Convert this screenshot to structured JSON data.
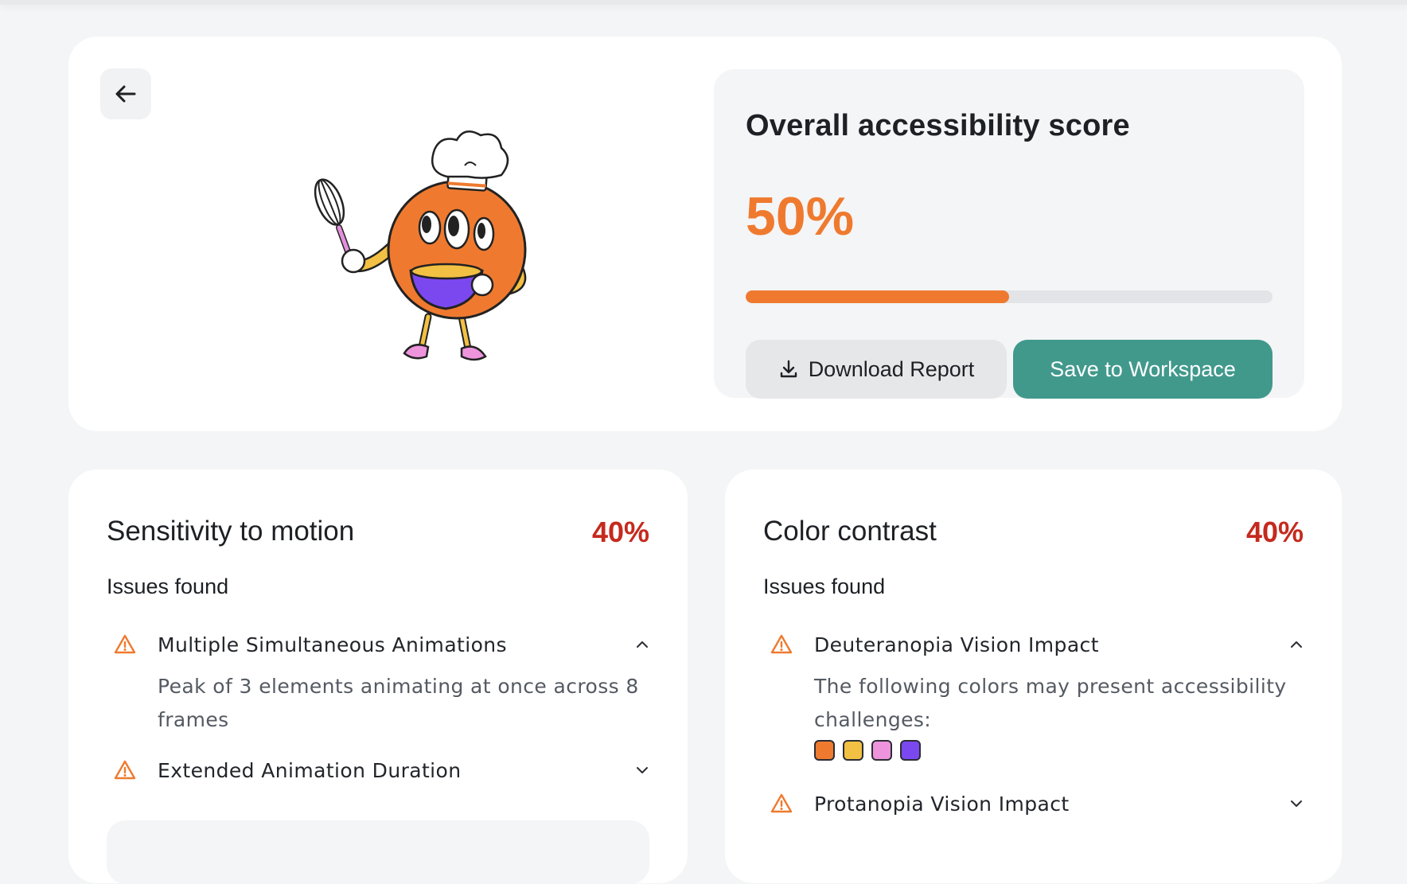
{
  "score_panel": {
    "title": "Overall accessibility score",
    "value": "50%",
    "progress_fraction": 0.5,
    "download_label": "Download Report",
    "save_label": "Save to Workspace"
  },
  "cards": [
    {
      "title": "Sensitivity to motion",
      "score": "40%",
      "issues_heading": "Issues found",
      "issues": [
        {
          "label": "Multiple Simultaneous Animations",
          "expanded": true,
          "description": "Peak of 3 elements animating at once across 8 frames"
        },
        {
          "label": "Extended Animation Duration",
          "expanded": false
        }
      ]
    },
    {
      "title": "Color contrast",
      "score": "40%",
      "issues_heading": "Issues found",
      "issues": [
        {
          "label": "Deuteranopia Vision Impact",
          "expanded": true,
          "description": "The following colors may present accessibility challenges:",
          "swatches": [
            "#ef7a2f",
            "#f2c042",
            "#ee94dd",
            "#7b48f0"
          ]
        },
        {
          "label": "Protanopia Vision Impact",
          "expanded": false
        }
      ]
    }
  ],
  "colors": {
    "accent_orange": "#ef7a2f",
    "teal": "#41998c",
    "score_red": "#c52a1e",
    "background": "#f4f5f6"
  },
  "icons": {
    "back": "arrow-left-icon",
    "download": "download-icon",
    "warning": "warning-triangle-icon",
    "expanded": "chevron-up-icon",
    "collapsed": "chevron-down-icon"
  }
}
